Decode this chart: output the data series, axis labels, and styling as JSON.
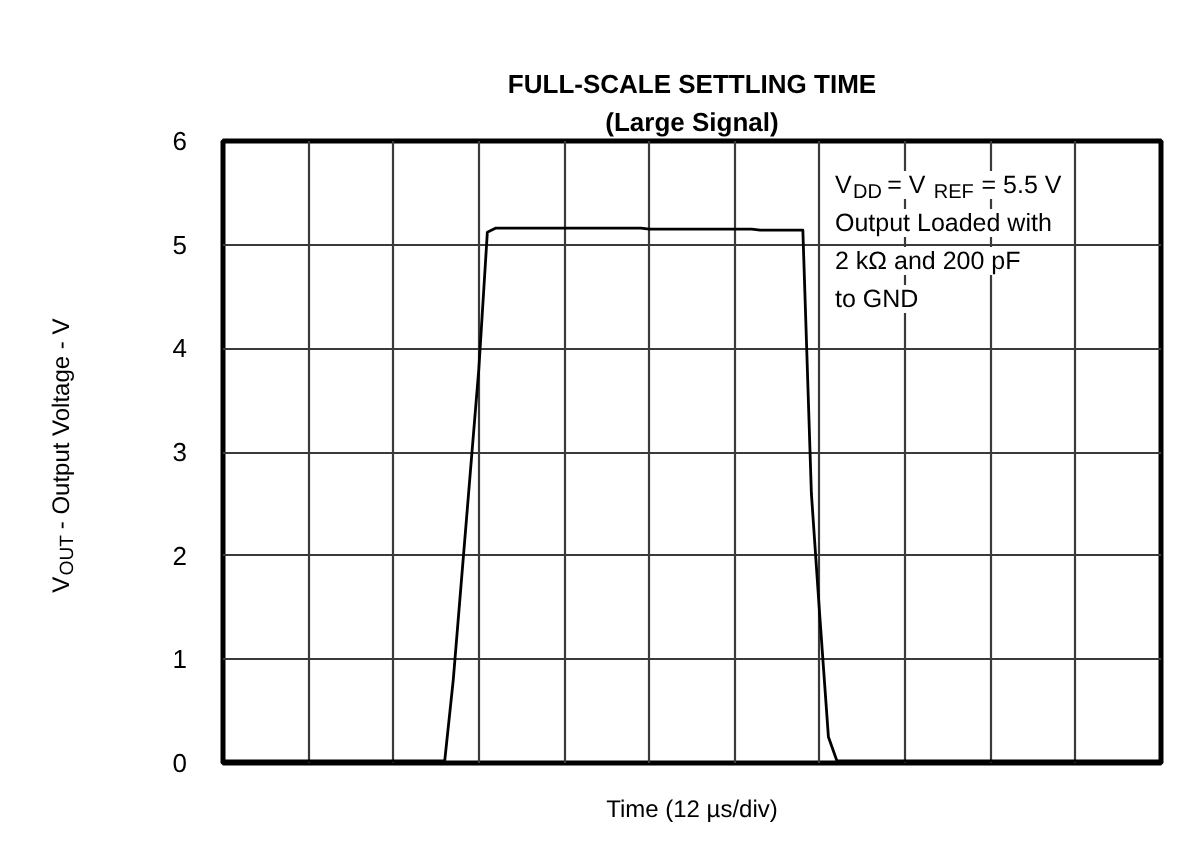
{
  "chart_data": {
    "type": "line",
    "title": "FULL-SCALE SETTLING TIME",
    "subtitle": "(Large Signal)",
    "xlabel": "Time (12 µs/div)",
    "ylabel": "V$_{OUT}$ - Output Voltage - V",
    "annotations": [
      "V$_{DD}$ = V$_{REF}$ = 5.5 V\nOutput Loaded with\n2 kΩ and 200 pF\nto GND"
    ],
    "categories": [
      null,
      null,
      null,
      null,
      null,
      null,
      null,
      null,
      null,
      null,
      null,
      null,
      null,
      null,
      null,
      null,
      null,
      null,
      null,
      null,
      null,
      null,
      null,
      null,
      null,
      null,
      null,
      null,
      null,
      null,
      null,
      null,
      null,
      null,
      null,
      null,
      null,
      null,
      null,
      null,
      null,
      null,
      null,
      null,
      null,
      null,
      null,
      null,
      null,
      null,
      null,
      null,
      null,
      null,
      null,
      null,
      null,
      null,
      null,
      null,
      null,
      null,
      null,
      null,
      null,
      null,
      null,
      null,
      null,
      null,
      null,
      null,
      null,
      null,
      null,
      null,
      null,
      null,
      null,
      null,
      null,
      null,
      null,
      null,
      null,
      null,
      null,
      null,
      null,
      null,
      null,
      null,
      null,
      null,
      null,
      null,
      null,
      null,
      null,
      null,
      null,
      null,
      null,
      null,
      null,
      null,
      null,
      null,
      null,
      null,
      null
    ],
    "series": [
      {
        "color": "#000000",
        "values": [
          0.02,
          0.02,
          0.02,
          0.02,
          0.02,
          0.02,
          0.02,
          0.02,
          0.02,
          0.02,
          0.02,
          0.02,
          0.02,
          0.02,
          0.02,
          0.02,
          0.02,
          0.02,
          0.02,
          0.02,
          0.02,
          0.02,
          0.02,
          0.02,
          0.02,
          0.02,
          0.02,
          0.8,
          1.8,
          2.8,
          3.8,
          5.12,
          5.16,
          5.16,
          5.16,
          5.16,
          5.16,
          5.16,
          5.16,
          5.16,
          5.16,
          5.16,
          5.16,
          5.16,
          5.16,
          5.16,
          5.16,
          5.16,
          5.16,
          5.16,
          5.15,
          5.15,
          5.15,
          5.15,
          5.15,
          5.15,
          5.15,
          5.15,
          5.15,
          5.15,
          5.15,
          5.15,
          5.15,
          5.14,
          5.14,
          5.14,
          5.14,
          5.14,
          5.14,
          2.6,
          1.4,
          0.25,
          0.02,
          0.02,
          0.02,
          0.02,
          0.02,
          0.02,
          0.02,
          0.02,
          0.02,
          0.02,
          0.02,
          0.02,
          0.02,
          0.02,
          0.02,
          0.02,
          0.02,
          0.02,
          0.02,
          0.02,
          0.02,
          0.02,
          0.02,
          0.02,
          0.02,
          0.02,
          0.02,
          0.02,
          0.02,
          0.02,
          0.02,
          0.02,
          0.02,
          0.02,
          0.02,
          0.02,
          0.02,
          0.02,
          0.02
        ]
      }
    ],
    "ylim": [
      0,
      6
    ],
    "yticks": [
      0,
      1,
      2,
      3,
      4,
      5,
      6
    ],
    "grid": true,
    "marker": "none",
    "line_style": "solid"
  }
}
